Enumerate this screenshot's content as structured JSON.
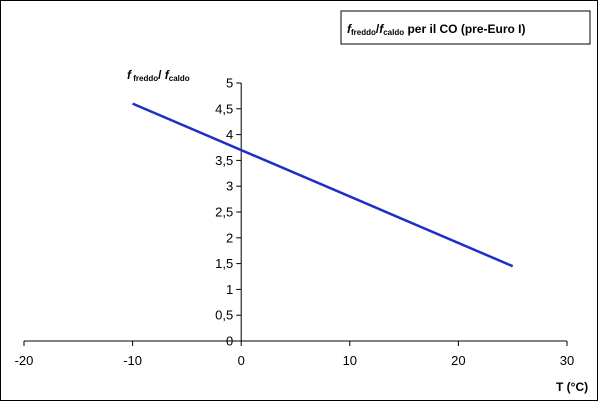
{
  "chart_data": {
    "type": "line",
    "title": {
      "f1": "f",
      "s1": "freddo",
      "slash": "/",
      "f2": "f",
      "s2": "caldo",
      "tail": " per il CO (pre-Euro I)"
    },
    "ylabel": {
      "f1": "f",
      "s1": " freddo",
      "slash": "/ ",
      "f2": "f",
      "s2": "caldo"
    },
    "xlabel": "T (°C)",
    "xlim": [
      -20,
      30
    ],
    "ylim": [
      0,
      5
    ],
    "x_ticks": [
      -20,
      -10,
      0,
      10,
      20,
      30
    ],
    "x_tick_labels": [
      "-20",
      "-10",
      "0",
      "10",
      "20",
      "30"
    ],
    "y_ticks": [
      0,
      0.5,
      1,
      1.5,
      2,
      2.5,
      3,
      3.5,
      4,
      4.5,
      5
    ],
    "y_tick_labels": [
      "0",
      "0,5",
      "1",
      "1,5",
      "2",
      "2,5",
      "3",
      "3,5",
      "4",
      "4,5",
      "5"
    ],
    "grid": false,
    "series": [
      {
        "color": "#1f2ec8",
        "x": [
          -10,
          25
        ],
        "y": [
          4.6,
          1.45
        ]
      }
    ]
  }
}
